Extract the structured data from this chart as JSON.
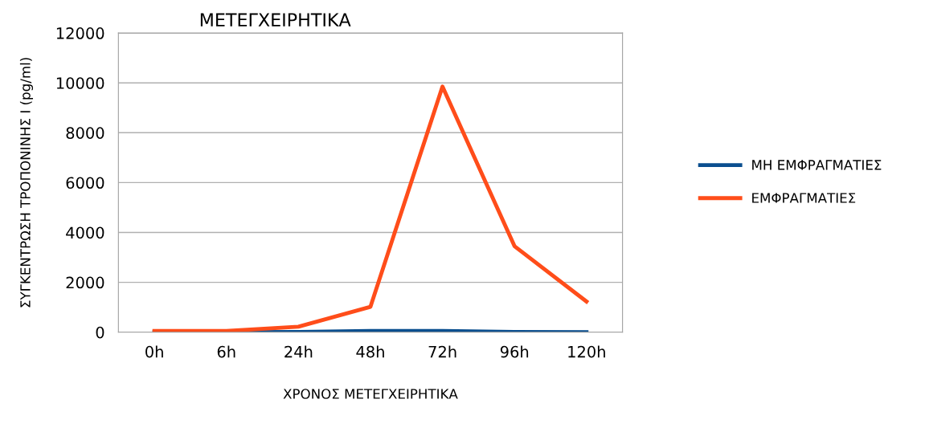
{
  "chart_data": {
    "type": "line",
    "title": "ΜΕΤΕΓΧΕΙΡΗΤΙΚΑ",
    "xlabel": "ΧΡΟΝΟΣ ΜΕΤΕΓΧΕΙΡΗΤΙΚΑ",
    "ylabel": "ΣΥΓΚΕΝΤΡΩΣΗ ΤΡΟΠΟΝΙΝΗΣ I (pg/ml)",
    "categories": [
      "0h",
      "6h",
      "24h",
      "48h",
      "72h",
      "96h",
      "120h"
    ],
    "series": [
      {
        "name": "ΜΗ ΕΜΦΡΑΓΜΑΤΙΕΣ",
        "color": "#0b4f8f",
        "values": [
          0,
          0,
          10,
          50,
          50,
          10,
          0
        ]
      },
      {
        "name": "ΕΜΦΡΑΓΜΑΤΙΕΣ",
        "color": "#ff4d1a",
        "values": [
          50,
          50,
          220,
          1020,
          9850,
          3450,
          1230
        ]
      }
    ],
    "ylim": [
      0,
      12000
    ],
    "yticks": [
      0,
      2000,
      4000,
      6000,
      8000,
      10000,
      12000
    ],
    "grid": "y",
    "legend": "right",
    "marker": "none",
    "line_style": "solid"
  }
}
